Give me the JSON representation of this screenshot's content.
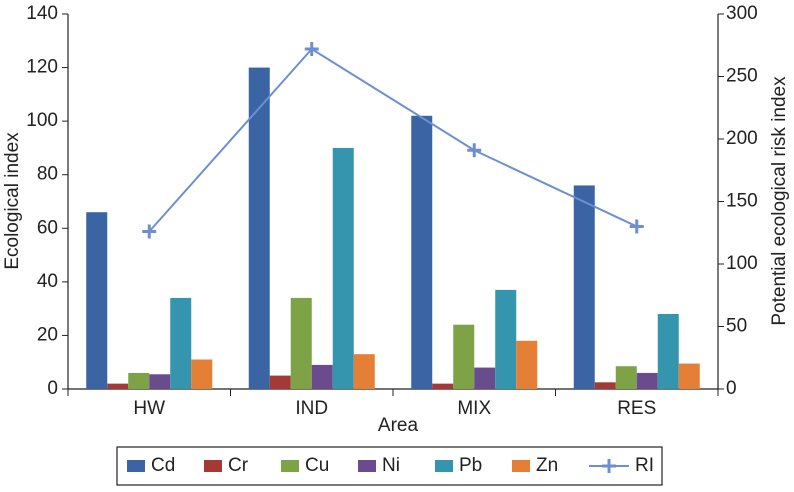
{
  "chart_data": {
    "type": "bar",
    "categories": [
      "HW",
      "IND",
      "MIX",
      "RES"
    ],
    "x_label": "Area",
    "y_label": "Ecological index",
    "y2_label": "Potential ecological risk index",
    "ylim": [
      0,
      140
    ],
    "yticks": [
      0,
      20,
      40,
      60,
      80,
      100,
      120,
      140
    ],
    "y2lim": [
      0,
      300
    ],
    "y2ticks": [
      0,
      50,
      100,
      150,
      200,
      250,
      300
    ],
    "series": [
      {
        "name": "Cd",
        "color": "#3a64a4",
        "values": [
          66,
          120,
          102,
          76
        ]
      },
      {
        "name": "Cr",
        "color": "#a33a36",
        "values": [
          2,
          5,
          2,
          2.5
        ]
      },
      {
        "name": "Cu",
        "color": "#7da346",
        "values": [
          6,
          34,
          24,
          8.5
        ]
      },
      {
        "name": "Ni",
        "color": "#6a4c8e",
        "values": [
          5.5,
          9,
          8,
          6
        ]
      },
      {
        "name": "Pb",
        "color": "#3594ae",
        "values": [
          34,
          90,
          37,
          28
        ]
      },
      {
        "name": "Zn",
        "color": "#e57f35",
        "values": [
          11,
          13,
          18,
          9.5
        ]
      },
      {
        "name": "RI",
        "color": "#6d8fd0",
        "type": "line",
        "axis": "y2",
        "values": [
          126,
          272,
          191,
          130
        ]
      }
    ]
  }
}
